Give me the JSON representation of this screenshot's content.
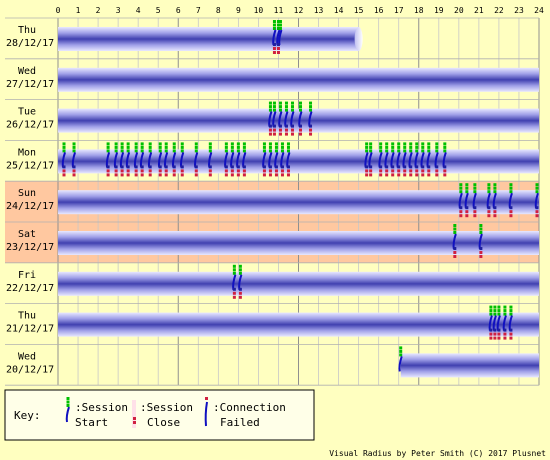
{
  "chart_data": {
    "type": "timeline",
    "x_range": [
      0,
      24
    ],
    "hour_ticks": [
      "0",
      "1",
      "2",
      "3",
      "4",
      "5",
      "6",
      "7",
      "8",
      "9",
      "10",
      "11",
      "12",
      "13",
      "14",
      "15",
      "16",
      "17",
      "18",
      "19",
      "20",
      "21",
      "22",
      "23",
      "24"
    ],
    "days": [
      {
        "day": "Thu",
        "date": "28/12/17",
        "weekend": false,
        "sessions": [
          [
            0,
            15
          ]
        ],
        "starts": [
          10.8,
          11.0,
          11.1
        ],
        "closes": [
          10.8,
          11.0
        ],
        "failed": []
      },
      {
        "day": "Wed",
        "date": "27/12/17",
        "weekend": false,
        "sessions": [
          [
            0,
            24
          ]
        ],
        "starts": [],
        "closes": [],
        "failed": []
      },
      {
        "day": "Tue",
        "date": "26/12/17",
        "weekend": false,
        "sessions": [
          [
            0,
            24
          ]
        ],
        "starts": [
          10.6,
          10.8,
          11.1,
          11.4,
          11.7,
          12.1,
          12.6
        ],
        "closes": [
          10.6,
          10.8,
          11.1,
          11.4,
          11.7,
          12.1,
          12.6
        ],
        "failed": []
      },
      {
        "day": "Mon",
        "date": "25/12/17",
        "weekend": false,
        "sessions": [
          [
            0,
            24
          ]
        ],
        "starts": [
          0.3,
          0.8,
          2.5,
          2.9,
          3.2,
          3.5,
          3.9,
          4.2,
          4.6,
          5.1,
          5.4,
          5.8,
          6.2,
          6.9,
          7.6,
          8.4,
          8.7,
          9.0,
          9.3,
          10.3,
          10.6,
          10.9,
          11.2,
          11.5,
          15.4,
          15.6,
          16.1,
          16.4,
          16.7,
          17.0,
          17.3,
          17.6,
          17.9,
          18.2,
          18.5,
          18.9,
          19.3
        ],
        "closes": [
          0.3,
          0.8,
          2.5,
          2.9,
          3.2,
          3.5,
          3.9,
          4.2,
          4.6,
          5.1,
          5.4,
          5.8,
          6.2,
          6.9,
          7.6,
          8.4,
          8.7,
          9.0,
          9.3,
          10.3,
          10.6,
          10.9,
          11.2,
          11.5,
          15.4,
          15.6,
          16.1,
          16.4,
          16.7,
          17.0,
          17.3,
          17.6,
          17.9,
          18.2,
          18.5,
          18.9,
          19.3
        ],
        "failed": []
      },
      {
        "day": "Sun",
        "date": "24/12/17",
        "weekend": true,
        "sessions": [
          [
            0,
            24
          ]
        ],
        "starts": [
          20.1,
          20.4,
          20.8,
          21.5,
          21.8,
          22.6,
          23.9
        ],
        "closes": [
          20.1,
          20.4,
          20.8,
          21.5,
          21.8,
          22.6,
          23.9
        ],
        "failed": []
      },
      {
        "day": "Sat",
        "date": "23/12/17",
        "weekend": true,
        "sessions": [
          [
            0,
            24
          ]
        ],
        "starts": [
          19.8,
          21.1
        ],
        "closes": [
          19.8,
          21.1
        ],
        "failed": []
      },
      {
        "day": "Fri",
        "date": "22/12/17",
        "weekend": false,
        "sessions": [
          [
            0,
            24
          ]
        ],
        "starts": [
          8.8,
          9.1
        ],
        "closes": [
          8.8,
          9.1
        ],
        "failed": []
      },
      {
        "day": "Thu",
        "date": "21/12/17",
        "weekend": false,
        "sessions": [
          [
            0,
            24
          ]
        ],
        "starts": [
          21.6,
          21.8,
          22.0,
          22.3,
          22.6
        ],
        "closes": [
          21.6,
          21.8,
          22.0,
          22.3,
          22.6
        ],
        "failed": []
      },
      {
        "day": "Wed",
        "date": "20/12/17",
        "weekend": false,
        "sessions": [
          [
            17.1,
            24
          ]
        ],
        "starts": [
          17.1
        ],
        "closes": [],
        "failed": []
      }
    ],
    "key": {
      "title": "Key:",
      "start_line1": ":Session",
      "start_line2": "Start",
      "close_line1": ":Session",
      "close_line2": "Close",
      "failed_line1": ":Connection",
      "failed_line2": "Failed"
    },
    "credit": "Visual Radius by Peter Smith (C) 2017 Plusnet",
    "colors": {
      "background": "#ffffc0",
      "weekend_background": "#ffc8a0",
      "bar_edge": "#c8c8ff",
      "bar_center": "#4040b8",
      "start_green": "#00c000",
      "start_blue": "#1010c0",
      "close_red": "#d02040",
      "close_blue": "#2020a0"
    }
  }
}
